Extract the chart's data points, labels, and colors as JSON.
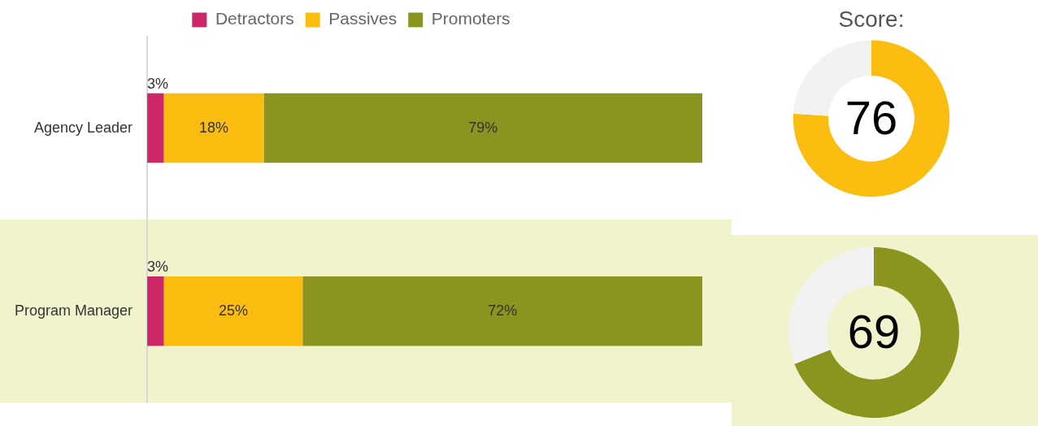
{
  "chart_data": [
    {
      "type": "bar",
      "orientation": "horizontal",
      "stacked": true,
      "categories": [
        "Agency Leader",
        "Program Manager"
      ],
      "tick_labels": "y",
      "bands": [
        {
          "axis": "y",
          "from": "Program Manager",
          "to": "Program Manager",
          "color": "#f0f3cb"
        }
      ],
      "legend": "top",
      "grid": false,
      "series": [
        {
          "name": "Detractors",
          "color": "#cc2766",
          "values": [
            3,
            3
          ],
          "value_labels": [
            "3%",
            "3%"
          ]
        },
        {
          "name": "Passives",
          "color": "#fbbd10",
          "values": [
            18,
            25
          ],
          "value_labels": [
            "18%",
            "25%"
          ]
        },
        {
          "name": "Promoters",
          "color": "#8a941e",
          "values": [
            79,
            72
          ],
          "value_labels": [
            "79%",
            "72%"
          ]
        }
      ]
    },
    {
      "type": "donut",
      "title": "Score:",
      "categories": [
        null,
        null
      ],
      "values": [
        76,
        24
      ],
      "colors": [
        "#fbbd10",
        "#f2f2f2"
      ],
      "value_labels": [
        "76",
        null
      ]
    },
    {
      "type": "donut",
      "categories": [
        null,
        null
      ],
      "values": [
        69,
        31
      ],
      "colors": [
        "#8a941e",
        "#f2f2f2"
      ],
      "value_labels": [
        "69",
        null
      ]
    }
  ]
}
